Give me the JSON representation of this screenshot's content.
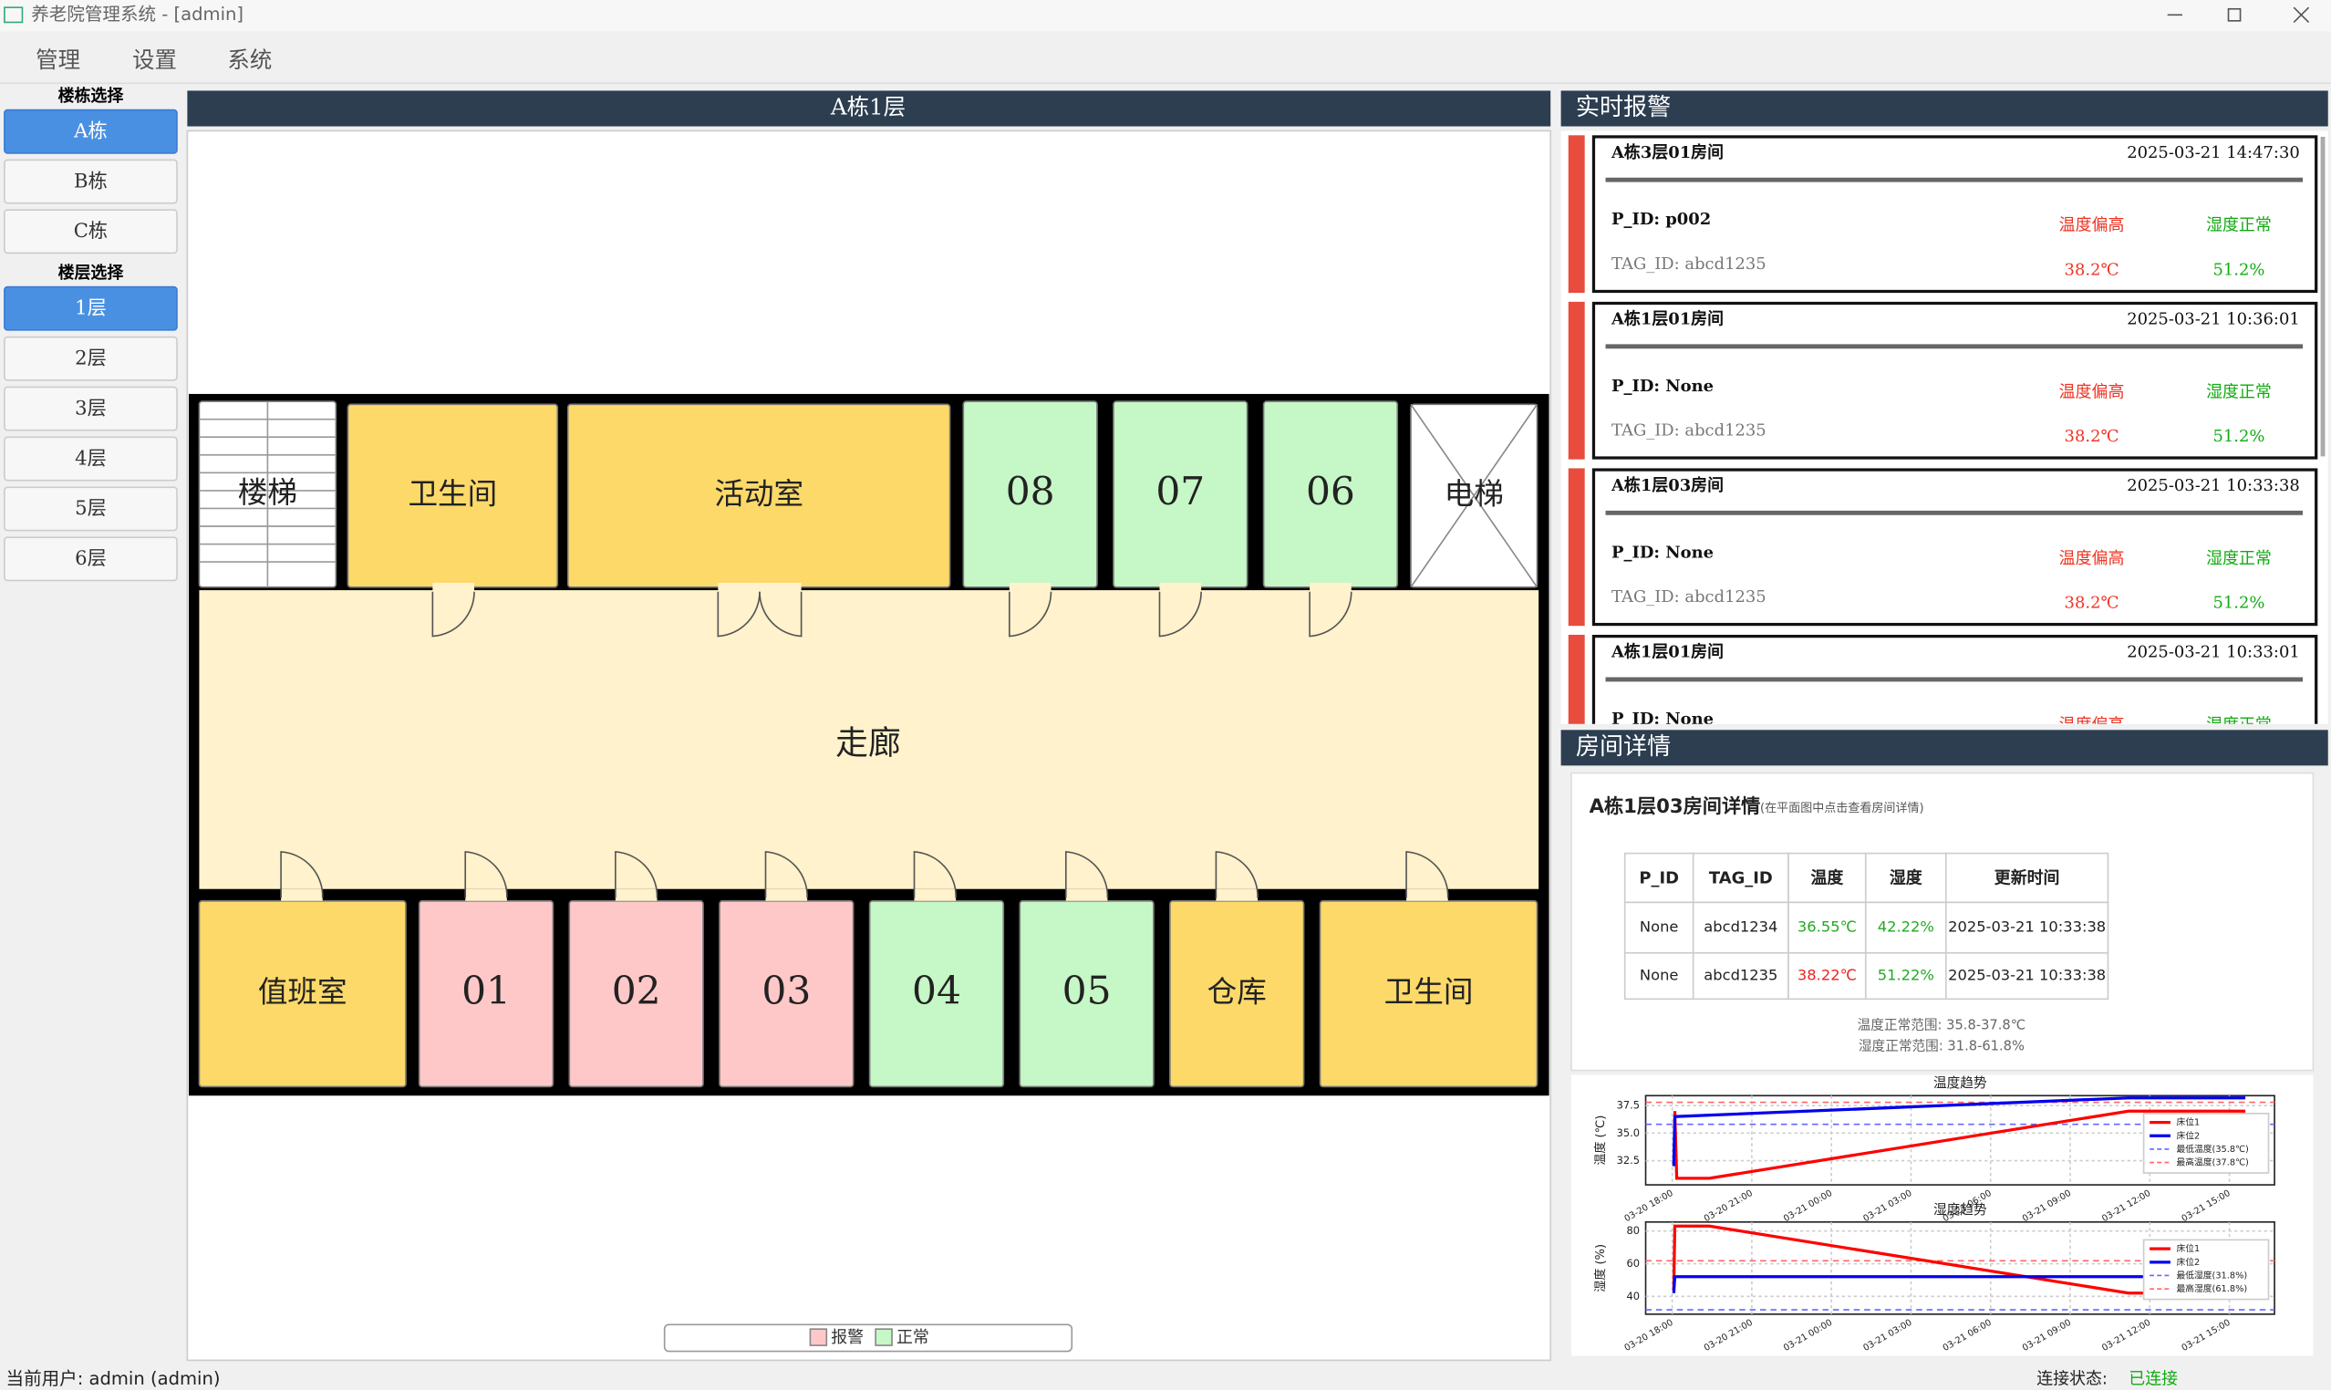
{
  "window": {
    "title": "养老院管理系统 - [admin]"
  },
  "menu": [
    "管理",
    "设置",
    "系统"
  ],
  "sidebar": {
    "building_label": "楼栋选择",
    "buildings": [
      "A栋",
      "B栋",
      "C栋"
    ],
    "floor_label": "楼层选择",
    "floors": [
      "1层",
      "2层",
      "3层",
      "4层",
      "5层",
      "6层"
    ]
  },
  "floor_plan": {
    "title": "A栋1层",
    "corridor": "走廊",
    "rooms": [
      {
        "label": "楼梯",
        "color": "#ffffff"
      },
      {
        "label": "卫生间",
        "color": "#fdd96a"
      },
      {
        "label": "活动室",
        "color": "#fdd96a"
      },
      {
        "label": "08",
        "color": "#c6f7c6"
      },
      {
        "label": "07",
        "color": "#c6f7c6"
      },
      {
        "label": "06",
        "color": "#c6f7c6"
      },
      {
        "label": "电梯",
        "color": "#ffffff"
      },
      {
        "label": "值班室",
        "color": "#fdd96a"
      },
      {
        "label": "01",
        "color": "#ffc8c8"
      },
      {
        "label": "02",
        "color": "#ffc8c8"
      },
      {
        "label": "03",
        "color": "#ffc8c8"
      },
      {
        "label": "04",
        "color": "#c6f7c6"
      },
      {
        "label": "05",
        "color": "#c6f7c6"
      },
      {
        "label": "仓库",
        "color": "#fdd96a"
      },
      {
        "label": "卫生间",
        "color": "#fdd96a"
      }
    ],
    "legend": [
      {
        "label": "报警",
        "color": "#ffc8c8"
      },
      {
        "label": "正常",
        "color": "#c6f7c6"
      }
    ]
  },
  "alerts": {
    "title": "实时报警",
    "items": [
      {
        "room": "A栋3层01房间",
        "time": "2025-03-21 14:47:30",
        "p_id": "P_ID: p002",
        "tag_id": "TAG_ID: abcd1235",
        "temp_status": "温度偏高",
        "humidity_status": "湿度正常",
        "temp": "38.2℃",
        "humidity": "51.2%"
      },
      {
        "room": "A栋1层01房间",
        "time": "2025-03-21 10:36:01",
        "p_id": "P_ID: None",
        "tag_id": "TAG_ID: abcd1235",
        "temp_status": "温度偏高",
        "humidity_status": "湿度正常",
        "temp": "38.2℃",
        "humidity": "51.2%"
      },
      {
        "room": "A栋1层03房间",
        "time": "2025-03-21 10:33:38",
        "p_id": "P_ID: None",
        "tag_id": "TAG_ID: abcd1235",
        "temp_status": "温度偏高",
        "humidity_status": "湿度正常",
        "temp": "38.2℃",
        "humidity": "51.2%"
      },
      {
        "room": "A栋1层01房间",
        "time": "2025-03-21 10:33:01",
        "p_id": "P_ID: None",
        "temp_status": "温度偏高",
        "humidity_status": "湿度正常"
      }
    ]
  },
  "room_detail": {
    "title": "房间详情",
    "heading": "A栋1层03房间详情",
    "hint": "(在平面图中点击查看房间详情)",
    "table": {
      "columns": [
        "P_ID",
        "TAG_ID",
        "温度",
        "湿度",
        "更新时间"
      ],
      "rows": [
        [
          "None",
          "abcd1234",
          "36.55℃",
          "42.22%",
          "2025-03-21 10:33:38"
        ],
        [
          "None",
          "abcd1235",
          "38.22℃",
          "51.22%",
          "2025-03-21 10:33:38"
        ]
      ]
    },
    "temp_range": "温度正常范围: 35.8-37.8℃",
    "humidity_range": "湿度正常范围: 31.8-61.8%"
  },
  "chart_data": [
    {
      "type": "line",
      "title": "温度趋势",
      "ylabel": "温度 (℃)",
      "grid": true,
      "xlim": [
        -1,
        22.7
      ],
      "xticks": [
        {
          "value": 0,
          "label": "03-20 18:00"
        },
        {
          "value": 3,
          "label": "03-20 21:00"
        },
        {
          "value": 6,
          "label": "03-21 00:00"
        },
        {
          "value": 9,
          "label": "03-21 03:00"
        },
        {
          "value": 12,
          "label": "03-21 06:00"
        },
        {
          "value": 15,
          "label": "03-21 09:00"
        },
        {
          "value": 18,
          "label": "03-21 12:00"
        },
        {
          "value": 21,
          "label": "03-21 15:00"
        }
      ],
      "ylim": [
        30.3,
        38.4
      ],
      "yticks": [
        32.5,
        {
          "value": 35,
          "label": "35.0"
        },
        37.5
      ],
      "series": [
        {
          "name": "床位1",
          "color": "#ff0000",
          "x": [
            0.1,
            0.17,
            1.4,
            17.2,
            21.6
          ],
          "values": [
            37.0,
            30.9,
            30.9,
            37.0,
            37.0
          ]
        },
        {
          "name": "床位2",
          "color": "#0000ee",
          "x": [
            0.06,
            0.1,
            17.2,
            21.6
          ],
          "values": [
            32.0,
            36.5,
            38.2,
            38.2
          ]
        }
      ],
      "thresholds": [
        {
          "name": "最低温度(35.8℃)",
          "value": 35.8,
          "color": "#6666ff"
        },
        {
          "name": "最高温度(37.8℃)",
          "value": 37.8,
          "color": "#ff6666"
        }
      ]
    },
    {
      "type": "line",
      "title": "湿度趋势",
      "ylabel": "湿度 (%)",
      "grid": true,
      "xlim": [
        -1,
        22.7
      ],
      "xticks": [
        {
          "value": 0,
          "label": "03-20 18:00"
        },
        {
          "value": 3,
          "label": "03-20 21:00"
        },
        {
          "value": 6,
          "label": "03-21 00:00"
        },
        {
          "value": 9,
          "label": "03-21 03:00"
        },
        {
          "value": 12,
          "label": "03-21 06:00"
        },
        {
          "value": 15,
          "label": "03-21 09:00"
        },
        {
          "value": 18,
          "label": "03-21 12:00"
        },
        {
          "value": 21,
          "label": "03-21 15:00"
        }
      ],
      "ylim": [
        29.1,
        85.5
      ],
      "yticks": [
        40,
        60,
        80
      ],
      "series": [
        {
          "name": "床位1",
          "color": "#ff0000",
          "x": [
            0.06,
            0.1,
            1.4,
            17.2,
            21.6
          ],
          "values": [
            44,
            83,
            83,
            42,
            42
          ]
        },
        {
          "name": "床位2",
          "color": "#0000ee",
          "x": [
            0.06,
            0.1,
            21.6
          ],
          "values": [
            42,
            52,
            52
          ]
        }
      ],
      "thresholds": [
        {
          "name": "最低湿度(31.8%)",
          "value": 31.8,
          "color": "#6666ff"
        },
        {
          "name": "最高湿度(61.8%)",
          "value": 61.8,
          "color": "#ff6666"
        }
      ]
    }
  ],
  "status_bar": {
    "user": "当前用户: admin (admin)",
    "connection_label": "连接状态:",
    "connection": "已连接"
  }
}
